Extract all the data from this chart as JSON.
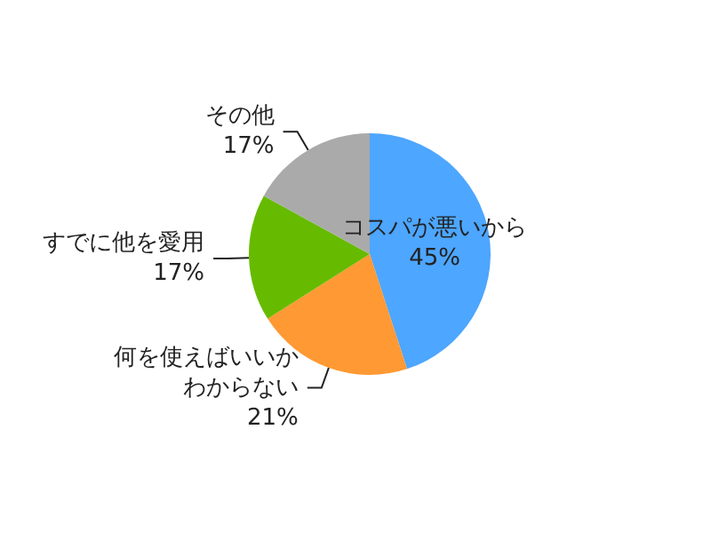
{
  "chart_data": {
    "type": "pie",
    "categories": [
      "コスパが悪いから",
      "何を使えばいいかわからない",
      "すでに他を愛用",
      "その他"
    ],
    "values": [
      45,
      21,
      17,
      17
    ],
    "value_labels": [
      "45%",
      "21%",
      "17%",
      "17%"
    ],
    "colors": [
      "#4da6ff",
      "#ff9933",
      "#66bb00",
      "#aaaaaa"
    ],
    "legend": false
  }
}
